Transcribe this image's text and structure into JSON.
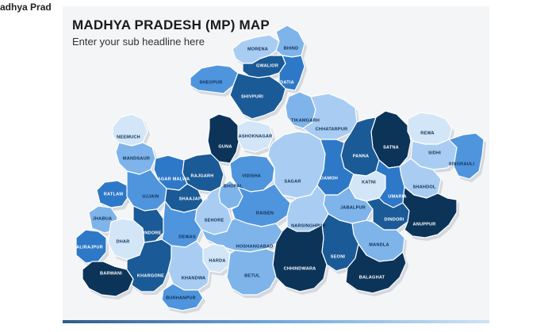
{
  "page": {
    "caption": "adhya Prad"
  },
  "slide": {
    "title": "MADHYA PRADESH (MP) MAP",
    "subtitle": "Enter your sub headline here"
  },
  "colors": {
    "darkest": "#0c3459",
    "dark": "#1a5a96",
    "medium": "#2e78c8",
    "bright": "#4f95dd",
    "light": "#7eb4ea",
    "lighter": "#a9cdf2",
    "pale": "#d3e6f8"
  },
  "districts": [
    {
      "name": "MORENA",
      "shade": "lighter"
    },
    {
      "name": "BHIND",
      "shade": "light"
    },
    {
      "name": "GWALIOR",
      "shade": "dark"
    },
    {
      "name": "DATIA",
      "shade": "medium"
    },
    {
      "name": "SHEOPUR",
      "shade": "bright"
    },
    {
      "name": "SHIVPURI",
      "shade": "dark"
    },
    {
      "name": "TIKAMGARH",
      "shade": "light"
    },
    {
      "name": "CHHATARPUR",
      "shade": "lighter"
    },
    {
      "name": "NEEMUCH",
      "shade": "pale"
    },
    {
      "name": "GUNA",
      "shade": "darkest"
    },
    {
      "name": "ASHOKNAGAR",
      "shade": "pale"
    },
    {
      "name": "SATNA",
      "shade": "darkest"
    },
    {
      "name": "REWA",
      "shade": "pale"
    },
    {
      "name": "SIDHI",
      "shade": "lighter"
    },
    {
      "name": "SINGRAULI",
      "shade": "bright"
    },
    {
      "name": "PANNA",
      "shade": "dark"
    },
    {
      "name": "MANDSAUR",
      "shade": "light"
    },
    {
      "name": "RAJGARH",
      "shade": "dark"
    },
    {
      "name": "AGAR MALWA",
      "shade": "medium"
    },
    {
      "name": "VIDISHA",
      "shade": "bright"
    },
    {
      "name": "SAGAR",
      "shade": "lighter"
    },
    {
      "name": "DAMOH",
      "shade": "medium"
    },
    {
      "name": "KATNI",
      "shade": "pale"
    },
    {
      "name": "SHAHDOL",
      "shade": "lighter"
    },
    {
      "name": "UMARIA",
      "shade": "medium"
    },
    {
      "name": "RATLAM",
      "shade": "medium"
    },
    {
      "name": "UJJAIN",
      "shade": "bright"
    },
    {
      "name": "SHAAJAPUR",
      "shade": "dark"
    },
    {
      "name": "BHOPAL",
      "shade": "light"
    },
    {
      "name": "SEHORE",
      "shade": "lighter"
    },
    {
      "name": "RAISEN",
      "shade": "bright"
    },
    {
      "name": "JABALPUR",
      "shade": "light"
    },
    {
      "name": "DINDORI",
      "shade": "dark"
    },
    {
      "name": "ANUPPUR",
      "shade": "darkest"
    },
    {
      "name": "JHABUA",
      "shade": "light"
    },
    {
      "name": "DHAR",
      "shade": "pale"
    },
    {
      "name": "INDORE",
      "shade": "dark"
    },
    {
      "name": "DEWAS",
      "shade": "bright"
    },
    {
      "name": "NARSINGHPUR",
      "shade": "lighter"
    },
    {
      "name": "ALIRAJPUR",
      "shade": "medium"
    },
    {
      "name": "HOSHANGABAD",
      "shade": "light"
    },
    {
      "name": "HARDA",
      "shade": "pale"
    },
    {
      "name": "MANDLA",
      "shade": "light"
    },
    {
      "name": "SEONI",
      "shade": "dark"
    },
    {
      "name": "CHHINDWARA",
      "shade": "darkest"
    },
    {
      "name": "BALAGHAT",
      "shade": "darkest"
    },
    {
      "name": "BARWANI",
      "shade": "darkest"
    },
    {
      "name": "KHARGONE",
      "shade": "dark"
    },
    {
      "name": "KHANDWA",
      "shade": "lighter"
    },
    {
      "name": "BETUL",
      "shade": "light"
    },
    {
      "name": "BURHANPUR",
      "shade": "bright"
    }
  ]
}
